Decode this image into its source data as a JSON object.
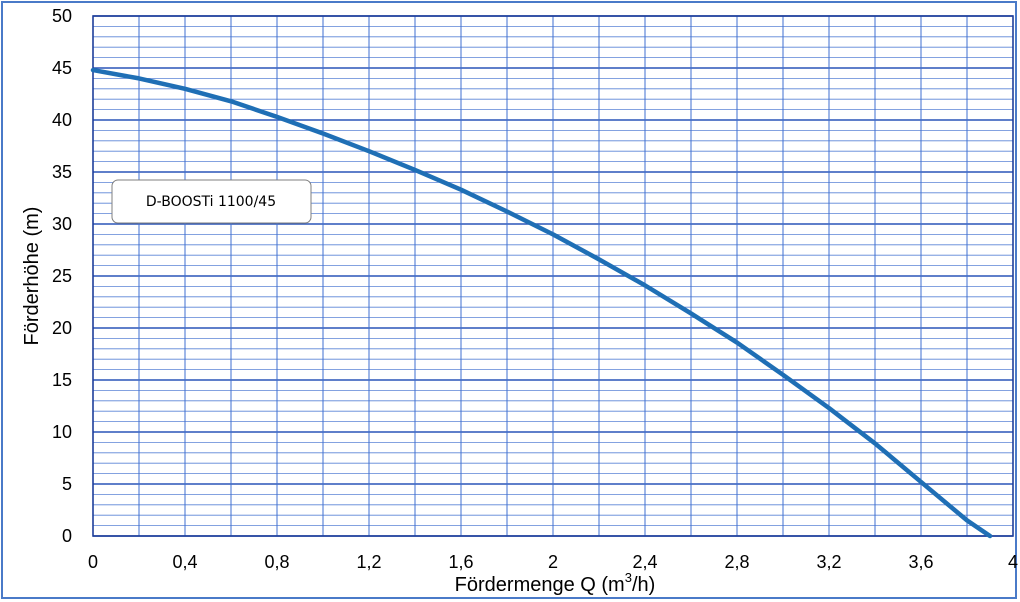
{
  "chart_data": {
    "type": "line",
    "xlabel": "Fördermenge Q (m³/h)",
    "xlabel_parts": {
      "prefix": "Fördermenge Q (m",
      "sup": "3",
      "suffix": "/h)"
    },
    "ylabel": "Förderhöhe (m)",
    "xlim": [
      0,
      4
    ],
    "ylim": [
      0,
      50
    ],
    "x_major_step": 0.2,
    "y_major_step": 5,
    "y_minor_step": 1,
    "x_tick_labels": [
      {
        "x": 0,
        "label": "0"
      },
      {
        "x": 0.4,
        "label": "0,4"
      },
      {
        "x": 0.8,
        "label": "0,8"
      },
      {
        "x": 1.2,
        "label": "1,2"
      },
      {
        "x": 1.6,
        "label": "1,6"
      },
      {
        "x": 2,
        "label": "2"
      },
      {
        "x": 2.4,
        "label": "2,4"
      },
      {
        "x": 2.8,
        "label": "2,8"
      },
      {
        "x": 3.2,
        "label": "3,2"
      },
      {
        "x": 3.6,
        "label": "3,6"
      },
      {
        "x": 4,
        "label": "4"
      }
    ],
    "y_tick_labels": [
      {
        "y": 0,
        "label": "0"
      },
      {
        "y": 5,
        "label": "5"
      },
      {
        "y": 10,
        "label": "10"
      },
      {
        "y": 15,
        "label": "15"
      },
      {
        "y": 20,
        "label": "20"
      },
      {
        "y": 25,
        "label": "25"
      },
      {
        "y": 30,
        "label": "30"
      },
      {
        "y": 35,
        "label": "35"
      },
      {
        "y": 40,
        "label": "40"
      },
      {
        "y": 45,
        "label": "45"
      },
      {
        "y": 50,
        "label": "50"
      }
    ],
    "grid": true,
    "annotation": "D-BOOSTi 1100/45",
    "series": [
      {
        "color": "#1f6fb5",
        "x": [
          0,
          0.2,
          0.4,
          0.6,
          0.8,
          1.0,
          1.2,
          1.4,
          1.6,
          1.8,
          2.0,
          2.2,
          2.4,
          2.6,
          2.8,
          3.0,
          3.2,
          3.4,
          3.6,
          3.8,
          3.9
        ],
        "y": [
          44.8,
          44.0,
          43.0,
          41.8,
          40.3,
          38.7,
          37.0,
          35.2,
          33.3,
          31.2,
          29.0,
          26.6,
          24.1,
          21.4,
          18.6,
          15.5,
          12.3,
          8.9,
          5.2,
          1.5,
          0
        ]
      }
    ]
  }
}
